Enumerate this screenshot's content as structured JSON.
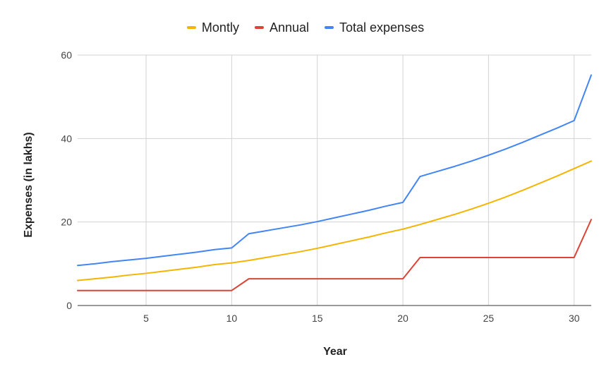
{
  "chart_data": {
    "type": "line",
    "title": "",
    "xlabel": "Year",
    "ylabel": "Expenses (in lakhs)",
    "xlim": [
      1,
      31
    ],
    "ylim": [
      0,
      60
    ],
    "x_ticks": [
      5,
      10,
      15,
      20,
      25,
      30
    ],
    "y_ticks": [
      0,
      20,
      40,
      60
    ],
    "grid": true,
    "legend_position": "top",
    "x": [
      1,
      2,
      3,
      4,
      5,
      6,
      7,
      8,
      9,
      10,
      11,
      12,
      13,
      14,
      15,
      16,
      17,
      18,
      19,
      20,
      21,
      22,
      23,
      24,
      25,
      26,
      27,
      28,
      29,
      30,
      31
    ],
    "series": [
      {
        "name": "Montly",
        "color": "#F4B400",
        "values": [
          6.0,
          6.4,
          6.8,
          7.3,
          7.7,
          8.2,
          8.7,
          9.2,
          9.8,
          10.2,
          10.8,
          11.5,
          12.2,
          12.9,
          13.7,
          14.6,
          15.5,
          16.4,
          17.4,
          18.3,
          19.4,
          20.6,
          21.8,
          23.1,
          24.5,
          26.0,
          27.6,
          29.3,
          31.0,
          32.8,
          34.6
        ]
      },
      {
        "name": "Annual",
        "color": "#DB4437",
        "values": [
          3.6,
          3.6,
          3.6,
          3.6,
          3.6,
          3.6,
          3.6,
          3.6,
          3.6,
          3.6,
          6.4,
          6.4,
          6.4,
          6.4,
          6.4,
          6.4,
          6.4,
          6.4,
          6.4,
          6.4,
          11.5,
          11.5,
          11.5,
          11.5,
          11.5,
          11.5,
          11.5,
          11.5,
          11.5,
          11.5,
          20.6
        ]
      },
      {
        "name": "Total expenses",
        "color": "#4285F4",
        "values": [
          9.6,
          10.0,
          10.5,
          10.9,
          11.3,
          11.8,
          12.3,
          12.8,
          13.4,
          13.8,
          17.2,
          17.9,
          18.6,
          19.3,
          20.1,
          21.0,
          21.9,
          22.8,
          23.8,
          24.7,
          30.9,
          32.1,
          33.3,
          34.6,
          36.0,
          37.5,
          39.1,
          40.8,
          42.5,
          44.3,
          55.2
        ]
      }
    ]
  }
}
